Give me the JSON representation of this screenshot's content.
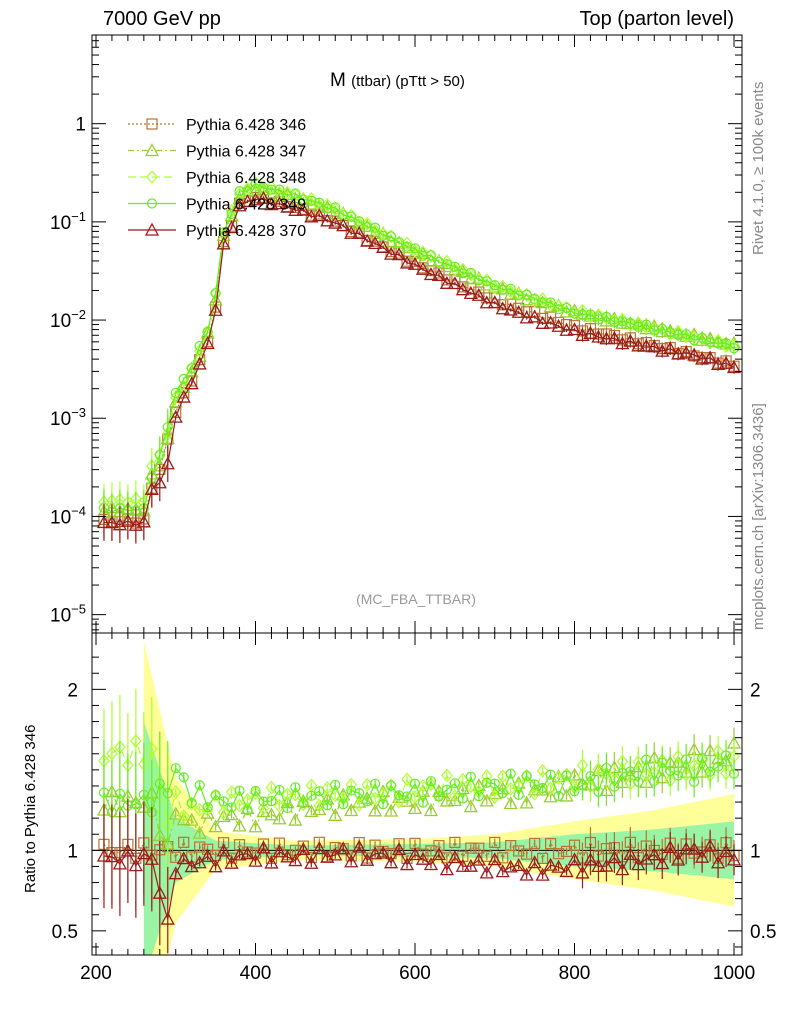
{
  "header": {
    "left": "7000 GeV pp",
    "right": "Top (parton level)"
  },
  "side_labels": {
    "rivet": "Rivet 4.1.0, ≥ 100k events",
    "mcplots": "mcplots.cern.ch [arXiv:1306.3436]"
  },
  "chart_data": {
    "type": "line",
    "title": "M (ttbar) (pTtt > 50)",
    "title_main": "M",
    "title_sub": "(ttbar) (pTtt > 50)",
    "watermark": "(MC_FBA_TTBAR)",
    "xlim": [
      195,
      1010
    ],
    "ylim_main": [
      6.5e-06,
      8
    ],
    "ylim_ratio": [
      0.35,
      2.35
    ],
    "ylabel_ratio": "Ratio to Pythia 6.428 346",
    "xticks": [
      200,
      400,
      600,
      800,
      1000
    ],
    "yticks_main": [
      {
        "value": 1e-05,
        "base": "10",
        "exp": "−5"
      },
      {
        "value": 0.0001,
        "base": "10",
        "exp": "−4"
      },
      {
        "value": 0.001,
        "base": "10",
        "exp": "−3"
      },
      {
        "value": 0.01,
        "base": "10",
        "exp": "−2"
      },
      {
        "value": 0.1,
        "base": "10",
        "exp": "−1"
      },
      {
        "value": 1,
        "base": "1",
        "exp": ""
      }
    ],
    "yticks_ratio": [
      {
        "value": 0.5,
        "label": "0.5"
      },
      {
        "value": 1,
        "label": "1"
      },
      {
        "value": 2,
        "label": "2"
      }
    ],
    "curve_knots_x": [
      210,
      240,
      260,
      270,
      280,
      290,
      300,
      320,
      340,
      350,
      360,
      380,
      400,
      450,
      500,
      600,
      700,
      800,
      900,
      1000
    ],
    "reference_curve": [
      9e-05,
      9e-05,
      9e-05,
      0.0002,
      0.0003,
      0.0006,
      0.0012,
      0.0025,
      0.006,
      0.014,
      0.06,
      0.15,
      0.18,
      0.14,
      0.1,
      0.038,
      0.016,
      0.0085,
      0.0055,
      0.0035
    ],
    "bin_width": 10,
    "series": [
      {
        "name": "Pythia 6.428 346",
        "color": "#b87333",
        "marker": "square",
        "dash": "2,2",
        "x": [
          270,
          290,
          300,
          320,
          360,
          400,
          450,
          500,
          550,
          600,
          650,
          700,
          750,
          800,
          850,
          900,
          950,
          1000
        ],
        "ratio": [
          1.0,
          1.0,
          1.0,
          1.0,
          1.0,
          1.0,
          1.0,
          1.0,
          1.0,
          1.0,
          1.0,
          1.0,
          1.0,
          1.0,
          1.0,
          1.0,
          1.0,
          1.0
        ]
      },
      {
        "name": "Pythia 6.428 347",
        "color": "#9acd32",
        "marker": "triangle",
        "dash": "6,3,2,3",
        "x": [
          270,
          290,
          300,
          320,
          360,
          400,
          450,
          500,
          550,
          600,
          650,
          700,
          750,
          800,
          850,
          900,
          950,
          1000
        ],
        "ratio": [
          1.3,
          1.0,
          1.25,
          1.15,
          1.2,
          1.2,
          1.25,
          1.28,
          1.3,
          1.3,
          1.33,
          1.35,
          1.35,
          1.42,
          1.45,
          1.5,
          1.55,
          1.6
        ]
      },
      {
        "name": "Pythia 6.428 348",
        "color": "#adff2f",
        "marker": "diamond",
        "dash": "8,4",
        "x": [
          270,
          290,
          300,
          320,
          360,
          400,
          450,
          500,
          550,
          600,
          650,
          700,
          750,
          800,
          850,
          900,
          950,
          1000
        ],
        "ratio": [
          1.6,
          1.2,
          1.3,
          1.25,
          1.3,
          1.32,
          1.33,
          1.35,
          1.35,
          1.38,
          1.4,
          1.4,
          1.42,
          1.45,
          1.48,
          1.5,
          1.52,
          1.55
        ]
      },
      {
        "name": "Pythia 6.428 349",
        "color": "#66ee22",
        "marker": "circle",
        "dash": "",
        "x": [
          270,
          290,
          300,
          320,
          360,
          400,
          450,
          500,
          550,
          600,
          650,
          700,
          750,
          800,
          850,
          900,
          950,
          1000
        ],
        "ratio": [
          1.3,
          1.4,
          1.5,
          1.35,
          1.3,
          1.32,
          1.33,
          1.34,
          1.35,
          1.36,
          1.38,
          1.4,
          1.42,
          1.4,
          1.45,
          1.5,
          1.5,
          1.55
        ]
      },
      {
        "name": "Pythia 6.428 370",
        "color": "#9b1b1b",
        "marker": "triangle",
        "dash": "",
        "x": [
          270,
          290,
          300,
          320,
          360,
          400,
          450,
          500,
          550,
          600,
          650,
          700,
          750,
          800,
          850,
          900,
          950,
          1000
        ],
        "ratio": [
          0.95,
          0.55,
          0.9,
          0.92,
          0.95,
          0.97,
          0.96,
          0.98,
          0.97,
          0.95,
          0.92,
          0.9,
          0.88,
          0.9,
          0.92,
          0.95,
          1.0,
          0.95
        ]
      }
    ],
    "bands": [
      {
        "name": "stat-yellow",
        "color": "#ffff99",
        "x": [
          260,
          300,
          350,
          450,
          600,
          700,
          800,
          900,
          1000
        ],
        "half_width": [
          1.3,
          0.45,
          0.12,
          0.06,
          0.07,
          0.1,
          0.18,
          0.25,
          0.35
        ]
      },
      {
        "name": "stat-green",
        "color": "#99f5a5",
        "x": [
          260,
          300,
          350,
          450,
          600,
          700,
          800,
          900,
          1000
        ],
        "half_width": [
          0.8,
          0.2,
          0.06,
          0.03,
          0.04,
          0.05,
          0.1,
          0.13,
          0.18
        ]
      }
    ]
  }
}
